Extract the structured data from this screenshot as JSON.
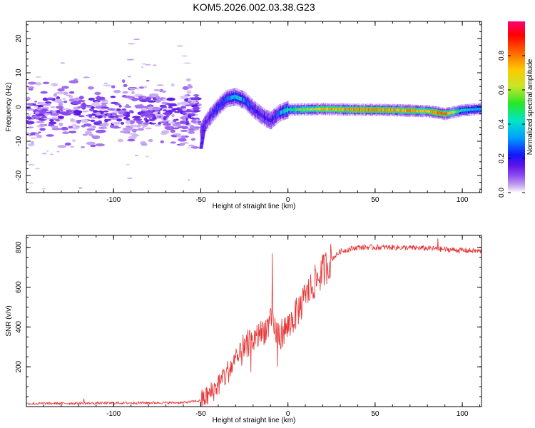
{
  "title": "KOM5.2026.002.03.38.G23",
  "chart_data": [
    {
      "type": "heatmap",
      "name": "spectrogram",
      "xlabel": "Height of straight line (km)",
      "ylabel": "Frequency (Hz)",
      "xlim": [
        -150,
        111
      ],
      "ylim": [
        -25,
        25
      ],
      "xticks": [
        -100,
        -50,
        0,
        50,
        100
      ],
      "yticks": [
        -20,
        -10,
        0,
        10,
        20
      ],
      "xticklabels": [
        "-100",
        "-50",
        "0",
        "50",
        "100"
      ],
      "yticklabels": [
        "-20",
        "-10",
        "0",
        "10",
        "20"
      ],
      "colorbar": {
        "label": "Normalized spectral amplitude",
        "range": [
          0,
          1
        ],
        "ticks": [
          0.0,
          0.2,
          0.4,
          0.6,
          0.8
        ],
        "ticklabels": [
          "0.0",
          "0.2",
          "0.4",
          "0.6",
          "0.8"
        ],
        "colormap": [
          "#ffffff",
          "#c8a8f0",
          "#8c4cf0",
          "#5a14e6",
          "#1414ff",
          "#00a0ff",
          "#00e6c8",
          "#28e628",
          "#c8e628",
          "#ffc800",
          "#ff6400",
          "#ff0000",
          "#ff0078"
        ]
      },
      "ridge": {
        "x": [
          -50,
          -45,
          -40,
          -35,
          -30,
          -25,
          -20,
          -15,
          -10,
          -5,
          0,
          20,
          40,
          60,
          80,
          90,
          100,
          111
        ],
        "y": [
          -7,
          -3,
          0,
          2.5,
          3.0,
          2.0,
          -0.5,
          -2.5,
          -4,
          -1.8,
          -0.8,
          -0.6,
          -0.8,
          -0.9,
          -1.2,
          -2.0,
          -1.0,
          -0.5
        ],
        "amplitude": [
          0.25,
          0.3,
          0.35,
          0.4,
          0.5,
          0.4,
          0.3,
          0.3,
          0.25,
          0.4,
          0.55,
          0.75,
          0.8,
          0.8,
          0.75,
          0.85,
          0.5,
          0.45
        ]
      },
      "noise_region": {
        "x_range": [
          -150,
          -50
        ],
        "y_range": [
          -12,
          8
        ],
        "amplitude": [
          0.05,
          0.25
        ]
      }
    },
    {
      "type": "line",
      "name": "snr",
      "xlabel": "Height of straight line (km)",
      "ylabel": "SNR (v/v)",
      "xlim": [
        -150,
        111
      ],
      "ylim": [
        0,
        860
      ],
      "xticks": [
        -100,
        -50,
        0,
        50,
        100
      ],
      "yticks": [
        200,
        400,
        600,
        800
      ],
      "xticklabels": [
        "-100",
        "-50",
        "0",
        "50",
        "100"
      ],
      "yticklabels": [
        "200",
        "400",
        "600",
        "800"
      ],
      "color": "#e63232",
      "envelope": {
        "x": [
          -150,
          -60,
          -50,
          -45,
          -40,
          -35,
          -30,
          -25,
          -20,
          -15,
          -10,
          -5,
          0,
          5,
          10,
          15,
          20,
          25,
          30,
          40,
          60,
          80,
          100,
          111
        ],
        "y": [
          15,
          20,
          30,
          60,
          110,
          170,
          230,
          280,
          330,
          370,
          420,
          360,
          400,
          470,
          550,
          620,
          680,
          740,
          780,
          800,
          800,
          795,
          785,
          780
        ]
      },
      "spikes": [
        {
          "x": -117,
          "y": 40
        },
        {
          "x": -9,
          "y": 770
        },
        {
          "x": -6,
          "y": 200
        },
        {
          "x": 86,
          "y": 845
        }
      ]
    }
  ]
}
